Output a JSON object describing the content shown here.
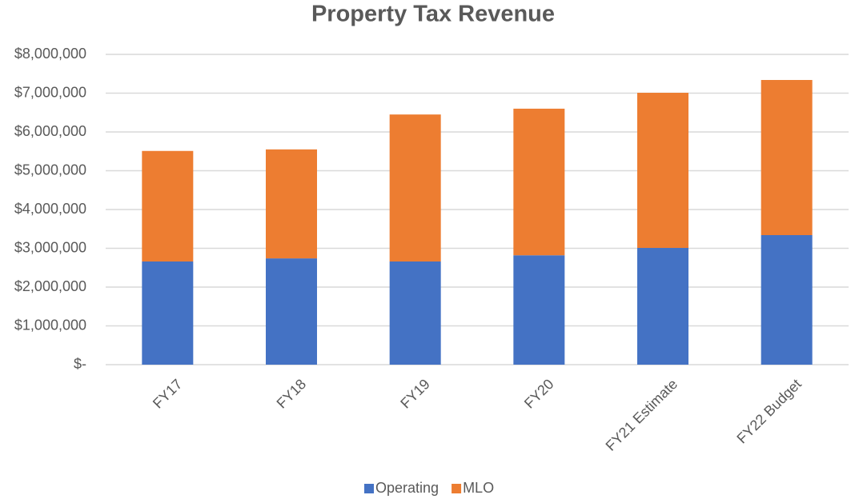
{
  "chart_data": {
    "type": "stacked_bar",
    "title": "Property Tax Revenue",
    "categories": [
      "FY17",
      "FY18",
      "FY19",
      "FY20",
      "FY21 Estimate",
      "FY22 Budget"
    ],
    "series": [
      {
        "name": "Operating",
        "color": "#4472c4",
        "values": [
          2660000,
          2740000,
          2660000,
          2820000,
          3010000,
          3340000
        ]
      },
      {
        "name": "MLO",
        "color": "#ed7d31",
        "values": [
          2850000,
          2810000,
          3790000,
          3780000,
          4000000,
          4000000
        ]
      }
    ],
    "ylim": [
      0,
      8000000
    ],
    "yticks": [
      {
        "value": 0,
        "label": "$-"
      },
      {
        "value": 1000000,
        "label": "$1,000,000"
      },
      {
        "value": 2000000,
        "label": "$2,000,000"
      },
      {
        "value": 3000000,
        "label": "$3,000,000"
      },
      {
        "value": 4000000,
        "label": "$4,000,000"
      },
      {
        "value": 5000000,
        "label": "$5,000,000"
      },
      {
        "value": 6000000,
        "label": "$6,000,000"
      },
      {
        "value": 7000000,
        "label": "$7,000,000"
      },
      {
        "value": 8000000,
        "label": "$8,000,000"
      }
    ],
    "grid": true,
    "legend": "bottom"
  }
}
